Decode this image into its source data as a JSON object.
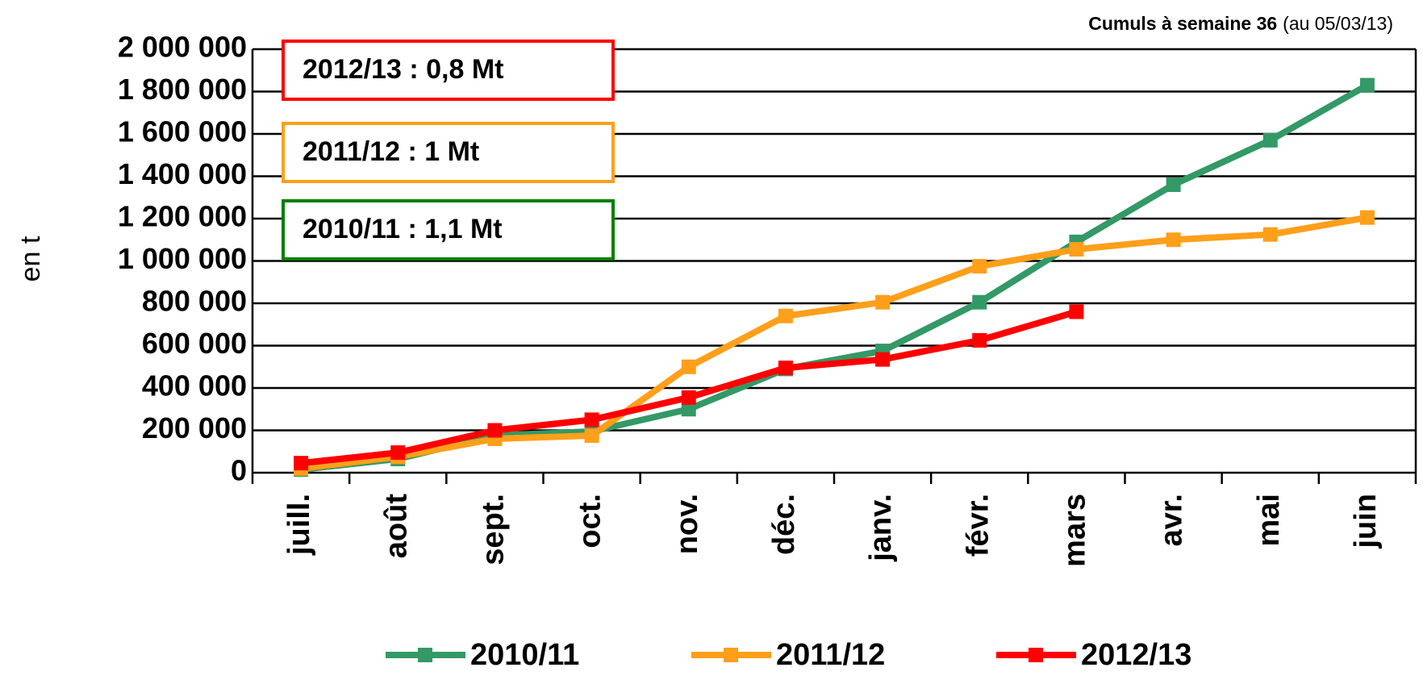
{
  "chart_data": {
    "type": "line",
    "title": "Cumuls à semaine 36",
    "subtitle": "(au 05/03/13)",
    "y_label": "en t",
    "categories": [
      "juill.",
      "août",
      "sept.",
      "oct.",
      "nov.",
      "déc.",
      "janv.",
      "févr.",
      "mars",
      "avr.",
      "mai",
      "juin"
    ],
    "series": [
      {
        "name": "2010/11",
        "color": "#339966",
        "values": [
          15000,
          65000,
          175000,
          195000,
          300000,
          490000,
          575000,
          805000,
          1090000,
          1360000,
          1570000,
          1830000
        ]
      },
      {
        "name": "2011/12",
        "color": "#ff9f1a",
        "values": [
          20000,
          75000,
          160000,
          175000,
          500000,
          740000,
          805000,
          975000,
          1055000,
          1100000,
          1125000,
          1205000
        ]
      },
      {
        "name": "2012/13",
        "color": "#ff0000",
        "values": [
          45000,
          95000,
          200000,
          250000,
          355000,
          495000,
          535000,
          625000,
          760000,
          null,
          null,
          null
        ]
      }
    ],
    "annotations": [
      {
        "text": "2012/13 : 0,8 Mt",
        "color": "#ff0000"
      },
      {
        "text": "2011/12 : 1 Mt",
        "color": "#ff9f1a"
      },
      {
        "text": "2010/11 : 1,1 Mt",
        "color": "#008000"
      }
    ],
    "ylim": [
      0,
      2000000
    ],
    "yticks": [
      0,
      {
        "value": 200000,
        "label": "200 000"
      },
      {
        "value": 400000,
        "label": "400 000"
      },
      {
        "value": 600000,
        "label": "600 000"
      },
      {
        "value": 800000,
        "label": "800 000"
      },
      {
        "value": 1000000,
        "label": "1 000 000"
      },
      {
        "value": 1200000,
        "label": "1 200 000"
      },
      {
        "value": 1400000,
        "label": "1 400 000"
      },
      {
        "value": 1600000,
        "label": "1 600 000"
      },
      {
        "value": 1800000,
        "label": "1 800 000"
      },
      {
        "value": 2000000,
        "label": "2 000 000"
      }
    ],
    "grid": true,
    "legend": "bottom"
  }
}
